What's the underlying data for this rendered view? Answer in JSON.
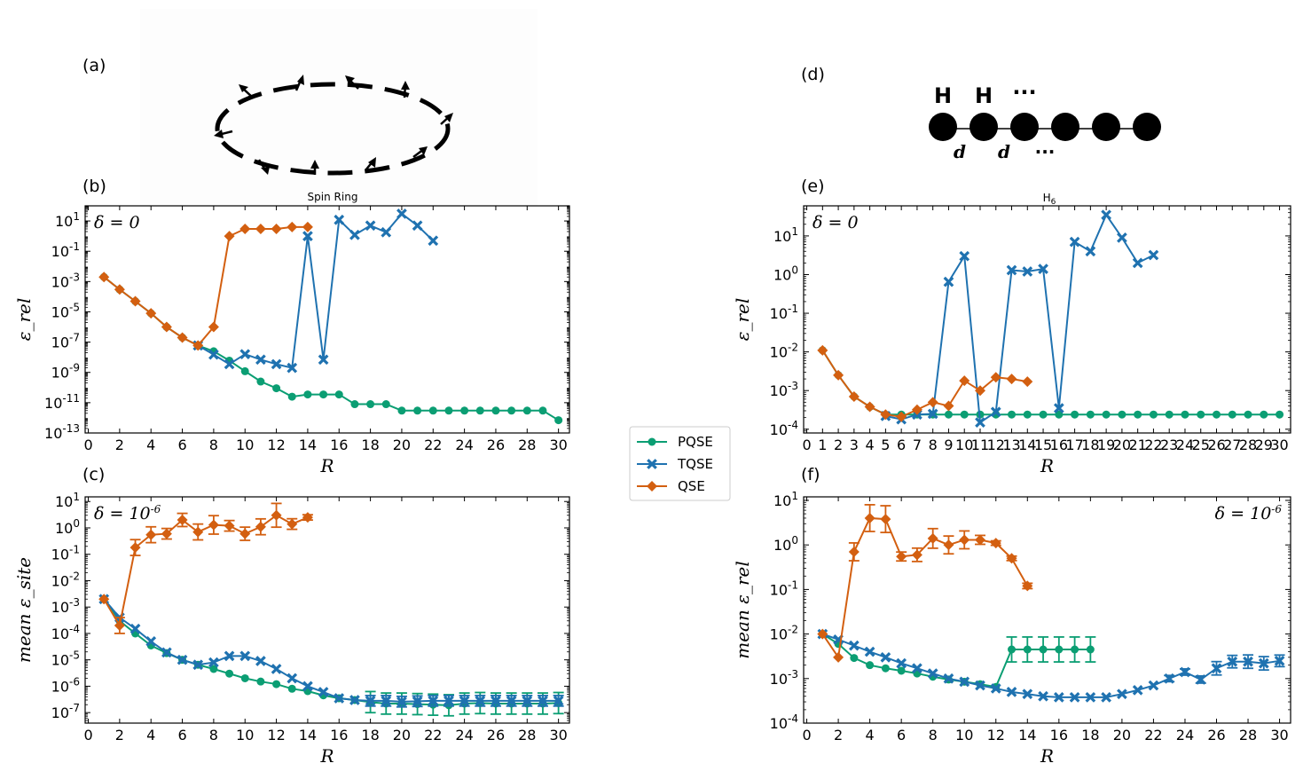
{
  "colors": {
    "PQSE": "#0b9e73",
    "TQSE": "#1f72b0",
    "QSE": "#d35f10"
  },
  "panel_labels": {
    "a": "(a)",
    "b": "(b)",
    "c": "(c)",
    "d": "(d)",
    "e": "(e)",
    "f": "(f)"
  },
  "spin_ring_caption": "Spin Ring",
  "h6_caption": "H6",
  "h6_diagram": {
    "atom_label": "H",
    "spacing_label": "d",
    "ellipsis": "···"
  },
  "legend": {
    "entries": [
      "PQSE",
      "TQSE",
      "QSE"
    ]
  },
  "chart_data": [
    {
      "id": "b",
      "type": "line",
      "xlabel": "R",
      "ylabel": "ε_rel",
      "annotation": "δ = 0",
      "yscale": "log",
      "xlim": [
        -0.2,
        30.7
      ],
      "ylim": [
        1e-13,
        100
      ],
      "xticks": [
        0,
        2,
        4,
        6,
        8,
        10,
        12,
        14,
        16,
        18,
        20,
        22,
        24,
        26,
        28,
        30
      ],
      "yticks": [
        {
          "exp": 1,
          "label": "10^1"
        },
        {
          "exp": -1,
          "label": "10^-1"
        },
        {
          "exp": -3,
          "label": "10^-3"
        },
        {
          "exp": -5,
          "label": "10^-5"
        },
        {
          "exp": -7,
          "label": "10^-7"
        },
        {
          "exp": -9,
          "label": "10^-9"
        },
        {
          "exp": -11,
          "label": "10^-11"
        },
        {
          "exp": -13,
          "label": "10^-13"
        }
      ],
      "series": [
        {
          "name": "PQSE",
          "marker": "circle",
          "x": [
            1,
            2,
            3,
            4,
            5,
            6,
            7,
            8,
            9,
            10,
            11,
            12,
            13,
            14,
            15,
            16,
            17,
            18,
            19,
            20,
            21,
            22,
            23,
            24,
            25,
            26,
            27,
            28,
            29,
            30
          ],
          "y": [
            0.002,
            0.0003,
            5e-05,
            8e-06,
            1e-06,
            2e-07,
            6e-08,
            2.5e-08,
            6e-09,
            1.2e-09,
            2.5e-10,
            9e-11,
            2.5e-11,
            3.5e-11,
            3.5e-11,
            3.5e-11,
            8e-12,
            8e-12,
            8e-12,
            3e-12,
            3e-12,
            3e-12,
            3e-12,
            3e-12,
            3e-12,
            3e-12,
            3e-12,
            3e-12,
            3e-12,
            7e-13
          ]
        },
        {
          "name": "TQSE",
          "marker": "x",
          "x": [
            7,
            8,
            9,
            10,
            11,
            12,
            13,
            14,
            15,
            16,
            17,
            18,
            19,
            20,
            21,
            22
          ],
          "y": [
            6e-08,
            1.5e-08,
            3.5e-09,
            1.6e-08,
            7e-09,
            3.5e-09,
            2e-09,
            1,
            7e-09,
            12,
            1.2,
            5,
            1.8,
            30,
            5,
            0.5
          ]
        },
        {
          "name": "QSE",
          "marker": "diamond",
          "x": [
            1,
            2,
            3,
            4,
            5,
            6,
            7,
            8,
            9,
            10,
            11,
            12,
            13,
            14
          ],
          "y": [
            0.002,
            0.0003,
            5e-05,
            8e-06,
            1e-06,
            2e-07,
            6e-08,
            1e-06,
            1,
            3,
            3,
            3,
            4,
            4
          ]
        }
      ]
    },
    {
      "id": "c",
      "type": "line",
      "xlabel": "R",
      "ylabel": "mean ε_site",
      "annotation": "δ = 10^-6",
      "yscale": "log",
      "xlim": [
        -0.2,
        30.7
      ],
      "ylim": [
        4e-08,
        15
      ],
      "xticks": [
        0,
        2,
        4,
        6,
        8,
        10,
        12,
        14,
        16,
        18,
        20,
        22,
        24,
        26,
        28,
        30
      ],
      "yticks": [
        {
          "exp": 1,
          "label": "10^1"
        },
        {
          "exp": 0,
          "label": "10^0"
        },
        {
          "exp": -1,
          "label": "10^-1"
        },
        {
          "exp": -2,
          "label": "10^-2"
        },
        {
          "exp": -3,
          "label": "10^-3"
        },
        {
          "exp": -4,
          "label": "10^-4"
        },
        {
          "exp": -5,
          "label": "10^-5"
        },
        {
          "exp": -6,
          "label": "10^-6"
        },
        {
          "exp": -7,
          "label": "10^-7"
        }
      ],
      "series": [
        {
          "name": "PQSE",
          "marker": "circle",
          "x": [
            1,
            2,
            3,
            4,
            5,
            6,
            7,
            8,
            9,
            10,
            11,
            12,
            13,
            14,
            15,
            16,
            17,
            18,
            19,
            20,
            21,
            22,
            23,
            24,
            25,
            26,
            27,
            28,
            29,
            30
          ],
          "y": [
            0.002,
            0.0003,
            0.0001,
            3.5e-05,
            1.8e-05,
            1e-05,
            6.5e-06,
            4.5e-06,
            3e-06,
            2e-06,
            1.5e-06,
            1.2e-06,
            8e-07,
            6.5e-07,
            4.5e-07,
            3.5e-07,
            3e-07,
            2.5e-07,
            2.2e-07,
            2.2e-07,
            2.1e-07,
            2e-07,
            1.9e-07,
            2.2e-07,
            2.3e-07,
            2.2e-07,
            2.2e-07,
            2.2e-07,
            2.2e-07,
            2.3e-07
          ],
          "err": [
            0,
            0,
            0,
            0,
            0,
            0,
            0,
            0,
            0,
            0,
            0,
            0,
            0,
            0,
            0,
            0,
            0,
            0.4,
            0.4,
            0.4,
            0.4,
            0.4,
            0.4,
            0.4,
            0.4,
            0.4,
            0.4,
            0.4,
            0.4,
            0.4
          ]
        },
        {
          "name": "TQSE",
          "marker": "x",
          "x": [
            1,
            2,
            3,
            4,
            5,
            6,
            7,
            8,
            9,
            10,
            11,
            12,
            13,
            14,
            15,
            16,
            17,
            18,
            19,
            20,
            21,
            22,
            23,
            24,
            25,
            26,
            27,
            28,
            29,
            30
          ],
          "y": [
            0.002,
            0.0004,
            0.00015,
            5e-05,
            1.9e-05,
            1e-05,
            6.5e-06,
            8e-06,
            1.4e-05,
            1.4e-05,
            9e-06,
            4.5e-06,
            2e-06,
            1e-06,
            6e-07,
            3.5e-07,
            3e-07,
            2.8e-07,
            2.8e-07,
            2.6e-07,
            2.7e-07,
            2.8e-07,
            2.8e-07,
            2.8e-07,
            2.8e-07,
            2.8e-07,
            2.8e-07,
            2.8e-07,
            2.8e-07,
            2.8e-07
          ],
          "err": [
            0,
            0,
            0,
            0,
            0,
            0,
            0,
            0,
            0,
            0,
            0,
            0,
            0,
            0,
            0,
            0,
            0,
            0.2,
            0.2,
            0.2,
            0.2,
            0.2,
            0.2,
            0.2,
            0.2,
            0.2,
            0.2,
            0.2,
            0.2,
            0.2
          ]
        },
        {
          "name": "QSE",
          "marker": "diamond",
          "x": [
            1,
            2,
            3,
            4,
            5,
            6,
            7,
            8,
            9,
            10,
            11,
            12,
            13,
            14
          ],
          "y": [
            0.002,
            0.0002,
            0.18,
            0.55,
            0.6,
            2,
            0.7,
            1.3,
            1.2,
            0.6,
            1.1,
            3,
            1.4,
            2.5
          ],
          "err": [
            0,
            0.3,
            0.3,
            0.3,
            0.2,
            0.25,
            0.3,
            0.35,
            0.2,
            0.25,
            0.3,
            0.45,
            0.2,
            0.1
          ]
        }
      ]
    },
    {
      "id": "e",
      "type": "line",
      "xlabel": "R",
      "ylabel": "ε_rel",
      "annotation": "δ = 0",
      "yscale": "log",
      "xlim": [
        -0.2,
        30.7
      ],
      "ylim": [
        8e-05,
        60
      ],
      "xticks": [
        0,
        1,
        2,
        3,
        4,
        5,
        6,
        7,
        8,
        9,
        10,
        11,
        12,
        13,
        14,
        15,
        16,
        17,
        18,
        19,
        20,
        21,
        22,
        23,
        24,
        25,
        26,
        27,
        28,
        29,
        30
      ],
      "yticks": [
        {
          "exp": 1,
          "label": "10^1"
        },
        {
          "exp": 0,
          "label": "10^0"
        },
        {
          "exp": -1,
          "label": "10^-1"
        },
        {
          "exp": -2,
          "label": "10^-2"
        },
        {
          "exp": -3,
          "label": "10^-3"
        },
        {
          "exp": -4,
          "label": "10^-4"
        }
      ],
      "series": [
        {
          "name": "PQSE",
          "marker": "circle",
          "x": [
            1,
            2,
            3,
            4,
            5,
            6,
            7,
            8,
            9,
            10,
            11,
            12,
            13,
            14,
            15,
            16,
            17,
            18,
            19,
            20,
            21,
            22,
            23,
            24,
            25,
            26,
            27,
            28,
            29,
            30
          ],
          "y": [
            0.011,
            0.0025,
            0.0007,
            0.00038,
            0.00024,
            0.00024,
            0.00024,
            0.00024,
            0.00024,
            0.00024,
            0.00024,
            0.00024,
            0.00024,
            0.00024,
            0.00024,
            0.00024,
            0.00024,
            0.00024,
            0.00024,
            0.00024,
            0.00024,
            0.00024,
            0.00024,
            0.00024,
            0.00024,
            0.00024,
            0.00024,
            0.00024,
            0.00024,
            0.00024
          ]
        },
        {
          "name": "TQSE",
          "marker": "x",
          "x": [
            5,
            6,
            7,
            8,
            9,
            10,
            11,
            12,
            13,
            14,
            15,
            16,
            17,
            18,
            19,
            20,
            21,
            22
          ],
          "y": [
            0.00022,
            0.00018,
            0.00024,
            0.00025,
            0.65,
            3,
            0.00015,
            0.00028,
            1.3,
            1.2,
            1.4,
            0.00035,
            7,
            4,
            35,
            9,
            2,
            3.2
          ]
        },
        {
          "name": "QSE",
          "marker": "diamond",
          "x": [
            1,
            2,
            3,
            4,
            5,
            6,
            7,
            8,
            9,
            10,
            11,
            12,
            13,
            14
          ],
          "y": [
            0.011,
            0.0025,
            0.0007,
            0.00038,
            0.00024,
            0.00021,
            0.00032,
            0.0005,
            0.0004,
            0.0018,
            0.001,
            0.0022,
            0.002,
            0.0017
          ]
        }
      ]
    },
    {
      "id": "f",
      "type": "line",
      "xlabel": "R",
      "ylabel": "mean ε_rel",
      "annotation": "δ = 10^-6",
      "yscale": "log",
      "xlim": [
        -0.2,
        30.7
      ],
      "ylim": [
        0.0001,
        12
      ],
      "xticks": [
        0,
        2,
        4,
        6,
        8,
        10,
        12,
        14,
        16,
        18,
        20,
        22,
        24,
        26,
        28,
        30
      ],
      "yticks": [
        {
          "exp": 1,
          "label": "10^1"
        },
        {
          "exp": 0,
          "label": "10^0"
        },
        {
          "exp": -1,
          "label": "10^-1"
        },
        {
          "exp": -2,
          "label": "10^-2"
        },
        {
          "exp": -3,
          "label": "10^-3"
        },
        {
          "exp": -4,
          "label": "10^-4"
        }
      ],
      "series": [
        {
          "name": "PQSE",
          "marker": "circle",
          "x": [
            1,
            2,
            3,
            4,
            5,
            6,
            7,
            8,
            9,
            10,
            11,
            12,
            13,
            14,
            15,
            16,
            17,
            18
          ],
          "y": [
            0.01,
            0.006,
            0.0029,
            0.002,
            0.0017,
            0.0015,
            0.0013,
            0.0011,
            0.00095,
            0.00085,
            0.00075,
            0.00065,
            0.0045,
            0.0045,
            0.0045,
            0.0045,
            0.0045,
            0.0045
          ],
          "err": [
            0,
            0,
            0,
            0,
            0,
            0,
            0,
            0,
            0,
            0,
            0,
            0,
            0.28,
            0.28,
            0.28,
            0.28,
            0.28,
            0.28
          ]
        },
        {
          "name": "TQSE",
          "marker": "x",
          "x": [
            1,
            2,
            3,
            4,
            5,
            6,
            7,
            8,
            9,
            10,
            11,
            12,
            13,
            14,
            15,
            16,
            17,
            18,
            19,
            20,
            21,
            22,
            23,
            24,
            25,
            26,
            27,
            28,
            29,
            30
          ],
          "y": [
            0.01,
            0.0075,
            0.0055,
            0.004,
            0.003,
            0.0022,
            0.0017,
            0.0013,
            0.001,
            0.00085,
            0.0007,
            0.0006,
            0.0005,
            0.00045,
            0.0004,
            0.00038,
            0.00038,
            0.00038,
            0.00038,
            0.00045,
            0.00055,
            0.0007,
            0.001,
            0.0014,
            0.00095,
            0.0017,
            0.0024,
            0.0024,
            0.0022,
            0.0025
          ],
          "err": [
            0,
            0,
            0,
            0,
            0,
            0,
            0,
            0,
            0,
            0,
            0,
            0,
            0,
            0,
            0,
            0,
            0,
            0,
            0,
            0,
            0,
            0,
            0.07,
            0.07,
            0.08,
            0.15,
            0.14,
            0.15,
            0.15,
            0.13
          ]
        },
        {
          "name": "QSE",
          "marker": "diamond",
          "x": [
            1,
            2,
            3,
            4,
            5,
            6,
            7,
            8,
            9,
            10,
            11,
            12,
            13,
            14
          ],
          "y": [
            0.01,
            0.003,
            0.7,
            4,
            3.8,
            0.55,
            0.6,
            1.4,
            1,
            1.3,
            1.3,
            1.1,
            0.5,
            0.12
          ],
          "err": [
            0,
            0,
            0.2,
            0.3,
            0.3,
            0.1,
            0.15,
            0.22,
            0.2,
            0.2,
            0.1,
            0.05,
            0.05,
            0.06
          ]
        }
      ]
    }
  ]
}
